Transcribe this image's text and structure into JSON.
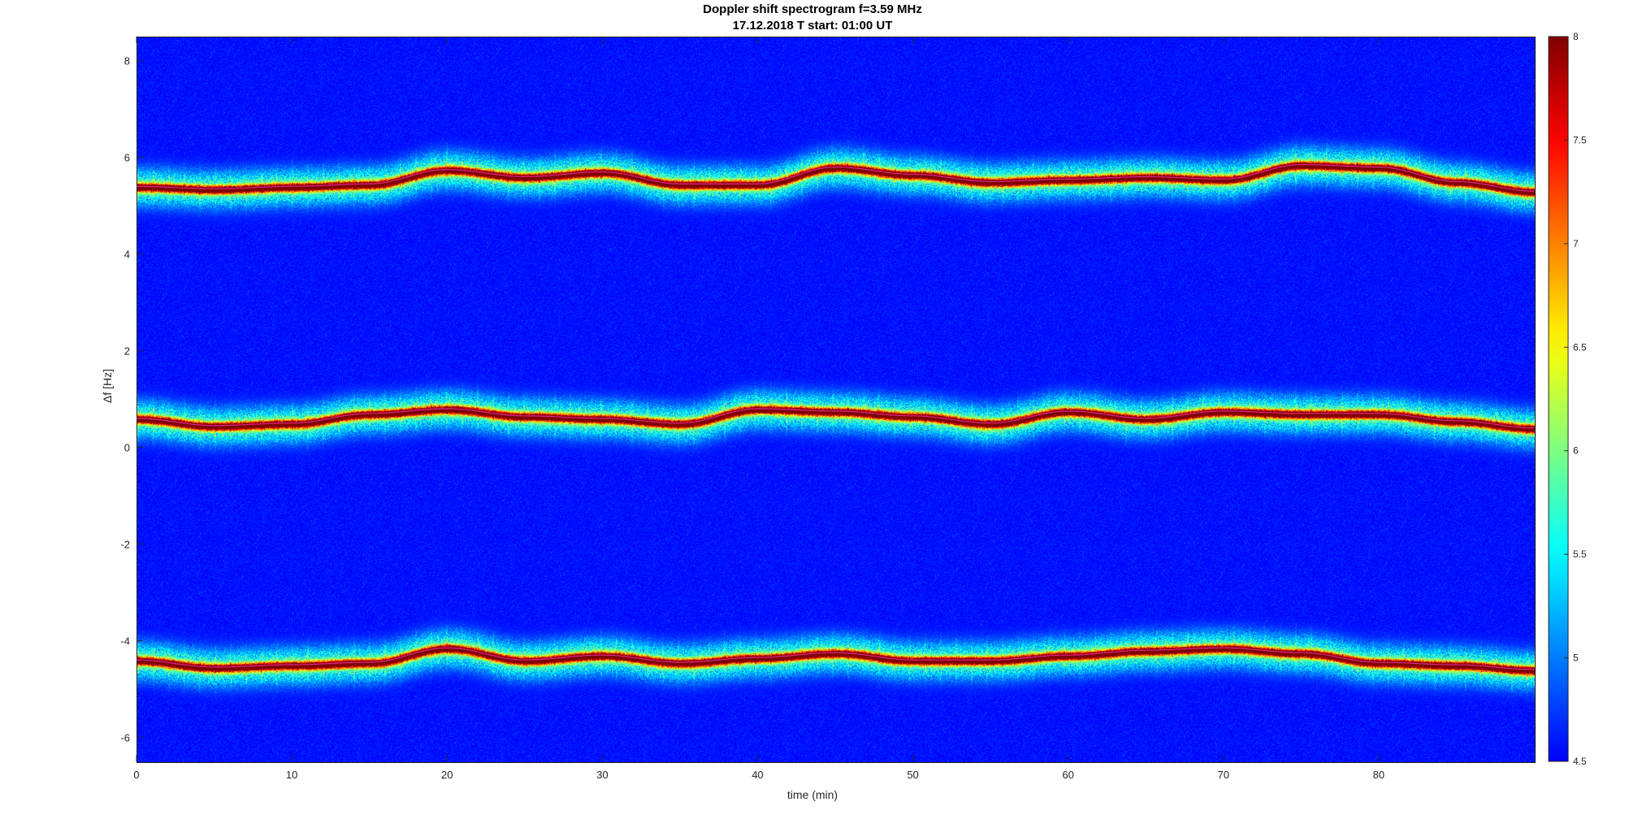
{
  "chart_data": {
    "type": "heatmap",
    "title": "Doppler shift spectrogram f=3.59 MHz",
    "subtitle": "17.12.2018   T start: 01:00 UT",
    "xlabel": "time (min)",
    "ylabel": "Δf [Hz]",
    "xlim": [
      0,
      90
    ],
    "ylim": [
      -6.5,
      8.5
    ],
    "x_ticks": [
      0,
      10,
      20,
      30,
      40,
      50,
      60,
      70,
      80
    ],
    "y_ticks": [
      -6,
      -4,
      -2,
      0,
      2,
      4,
      6,
      8
    ],
    "colormap": "jet",
    "colorbar": {
      "range": [
        4.5,
        8
      ],
      "ticks": [
        "4.5",
        "5",
        "5.5",
        "6",
        "6.5",
        "7",
        "7.5",
        "8"
      ]
    },
    "series": [
      {
        "band": "upper",
        "x": [
          0,
          5,
          10,
          15,
          20,
          25,
          30,
          35,
          40,
          45,
          50,
          55,
          60,
          65,
          70,
          75,
          80,
          85,
          90
        ],
        "y": [
          5.4,
          5.35,
          5.4,
          5.45,
          5.75,
          5.6,
          5.7,
          5.45,
          5.45,
          5.8,
          5.65,
          5.5,
          5.55,
          5.6,
          5.55,
          5.85,
          5.8,
          5.5,
          5.3
        ]
      },
      {
        "band": "middle",
        "x": [
          0,
          5,
          10,
          15,
          20,
          25,
          30,
          35,
          40,
          45,
          50,
          55,
          60,
          65,
          70,
          75,
          80,
          85,
          90
        ],
        "y": [
          0.6,
          0.45,
          0.5,
          0.7,
          0.8,
          0.65,
          0.6,
          0.5,
          0.8,
          0.75,
          0.65,
          0.5,
          0.75,
          0.6,
          0.75,
          0.7,
          0.7,
          0.55,
          0.4
        ]
      },
      {
        "band": "lower",
        "x": [
          0,
          5,
          10,
          15,
          20,
          25,
          30,
          35,
          40,
          45,
          50,
          55,
          60,
          65,
          70,
          75,
          80,
          85,
          90
        ],
        "y": [
          -4.4,
          -4.55,
          -4.5,
          -4.45,
          -4.15,
          -4.4,
          -4.3,
          -4.45,
          -4.35,
          -4.25,
          -4.4,
          -4.4,
          -4.3,
          -4.2,
          -4.15,
          -4.25,
          -4.45,
          -4.5,
          -4.6
        ]
      }
    ]
  }
}
